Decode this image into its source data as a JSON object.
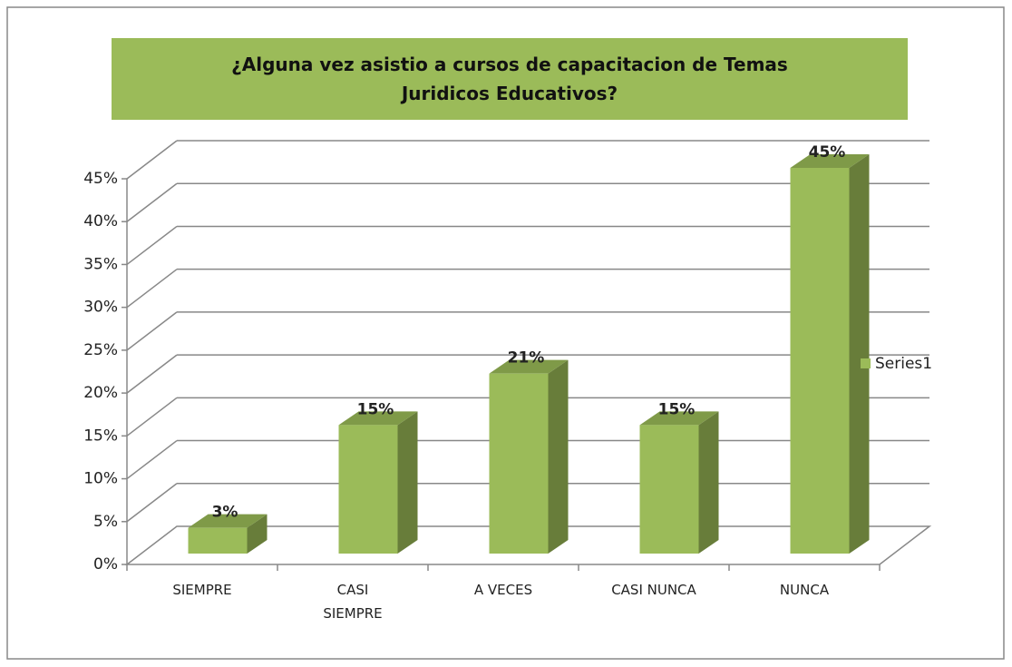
{
  "chart_data": {
    "type": "bar",
    "title": "¿Alguna vez asistio a cursos de capacitacion de Temas Juridicos Educativos?",
    "categories": [
      "SIEMPRE",
      "CASI SIEMPRE",
      "A VECES",
      "CASI NUNCA",
      "NUNCA"
    ],
    "series": [
      {
        "name": "Series1",
        "color": "#9bbb59",
        "values": [
          3,
          15,
          21,
          15,
          45
        ],
        "value_labels": [
          "3%",
          "15%",
          "21%",
          "15%",
          "45%"
        ]
      }
    ],
    "ylim": [
      0,
      45
    ],
    "yticks": [
      {
        "value": 0,
        "label": "0%"
      },
      {
        "value": 5,
        "label": "5%"
      },
      {
        "value": 10,
        "label": "10%"
      },
      {
        "value": 15,
        "label": "15%"
      },
      {
        "value": 20,
        "label": "20%"
      },
      {
        "value": 25,
        "label": "25%"
      },
      {
        "value": 30,
        "label": "30%"
      },
      {
        "value": 35,
        "label": "35%"
      },
      {
        "value": 40,
        "label": "40%"
      },
      {
        "value": 45,
        "label": "45%"
      }
    ],
    "grid": true,
    "legend": "right"
  }
}
